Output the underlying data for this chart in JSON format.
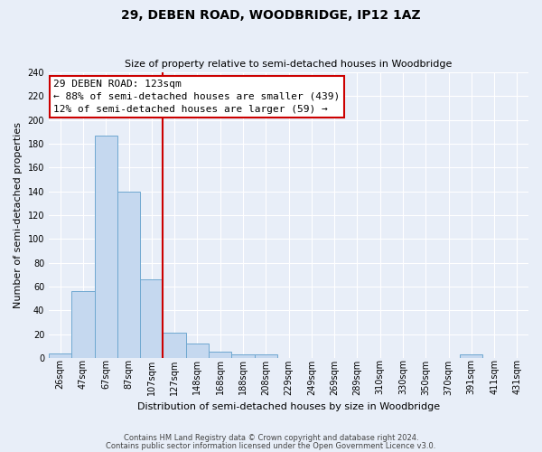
{
  "title": "29, DEBEN ROAD, WOODBRIDGE, IP12 1AZ",
  "subtitle": "Size of property relative to semi-detached houses in Woodbridge",
  "xlabel": "Distribution of semi-detached houses by size in Woodbridge",
  "ylabel": "Number of semi-detached properties",
  "footnote1": "Contains HM Land Registry data © Crown copyright and database right 2024.",
  "footnote2": "Contains public sector information licensed under the Open Government Licence v3.0.",
  "bar_labels": [
    "26sqm",
    "47sqm",
    "67sqm",
    "87sqm",
    "107sqm",
    "127sqm",
    "148sqm",
    "168sqm",
    "188sqm",
    "208sqm",
    "229sqm",
    "249sqm",
    "269sqm",
    "289sqm",
    "310sqm",
    "330sqm",
    "350sqm",
    "370sqm",
    "391sqm",
    "411sqm",
    "431sqm"
  ],
  "bar_values": [
    4,
    56,
    187,
    140,
    66,
    21,
    12,
    5,
    3,
    3,
    0,
    0,
    0,
    0,
    0,
    0,
    0,
    0,
    3,
    0,
    0
  ],
  "bar_color": "#c5d8ef",
  "bar_edge_color": "#6fa8d0",
  "highlight_line_color": "#cc0000",
  "highlight_box_text": "29 DEBEN ROAD: 123sqm\n← 88% of semi-detached houses are smaller (439)\n12% of semi-detached houses are larger (59) →",
  "highlight_box_facecolor": "#ffffff",
  "highlight_box_edgecolor": "#cc0000",
  "red_line_index": 5,
  "ylim": [
    0,
    240
  ],
  "yticks": [
    0,
    20,
    40,
    60,
    80,
    100,
    120,
    140,
    160,
    180,
    200,
    220,
    240
  ],
  "bg_color": "#e8eef8",
  "plot_bg_color": "#e8eef8",
  "grid_color": "#ffffff",
  "title_fontsize": 10,
  "subtitle_fontsize": 8,
  "ylabel_fontsize": 8,
  "xlabel_fontsize": 8,
  "tick_fontsize": 7,
  "footnote_fontsize": 6,
  "annot_fontsize": 8
}
